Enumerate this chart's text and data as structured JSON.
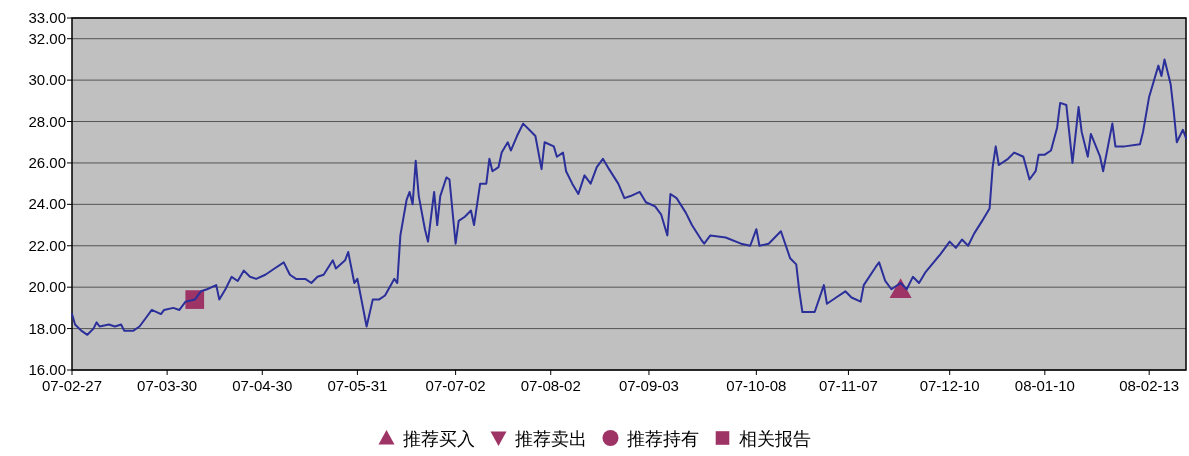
{
  "chart_data": {
    "type": "line",
    "grid": "y",
    "legend": "bottom",
    "xlim": [
      "2007-02-27",
      "2008-02-25"
    ],
    "xticks": [
      {
        "value": "2007-02-27",
        "label": "07-02-27"
      },
      {
        "value": "2007-03-30",
        "label": "07-03-30"
      },
      {
        "value": "2007-04-30",
        "label": "07-04-30"
      },
      {
        "value": "2007-05-31",
        "label": "07-05-31"
      },
      {
        "value": "2007-07-02",
        "label": "07-07-02"
      },
      {
        "value": "2007-08-02",
        "label": "07-08-02"
      },
      {
        "value": "2007-09-03",
        "label": "07-09-03"
      },
      {
        "value": "2007-10-08",
        "label": "07-10-08"
      },
      {
        "value": "2007-11-07",
        "label": "07-11-07"
      },
      {
        "value": "2007-12-10",
        "label": "07-12-10"
      },
      {
        "value": "2008-01-10",
        "label": "08-01-10"
      },
      {
        "value": "2008-02-13",
        "label": "08-02-13"
      }
    ],
    "ylim": [
      16,
      33
    ],
    "yticks": [
      {
        "value": 16,
        "label": "16.00"
      },
      {
        "value": 18,
        "label": "18.00"
      },
      {
        "value": 20,
        "label": "20.00"
      },
      {
        "value": 22,
        "label": "22.00"
      },
      {
        "value": 24,
        "label": "24.00"
      },
      {
        "value": 26,
        "label": "26.00"
      },
      {
        "value": 28,
        "label": "28.00"
      },
      {
        "value": 30,
        "label": "30.00"
      },
      {
        "value": 32,
        "label": "32.00"
      },
      {
        "value": 33,
        "label": "33.00"
      }
    ],
    "x": [
      "2007-02-27",
      "2007-02-28",
      "2007-03-02",
      "2007-03-04",
      "2007-03-06",
      "2007-03-07",
      "2007-03-08",
      "2007-03-11",
      "2007-03-13",
      "2007-03-15",
      "2007-03-16",
      "2007-03-19",
      "2007-03-21",
      "2007-03-23",
      "2007-03-25",
      "2007-03-28",
      "2007-03-29",
      "2007-04-01",
      "2007-04-03",
      "2007-04-05",
      "2007-04-08",
      "2007-04-10",
      "2007-04-12",
      "2007-04-15",
      "2007-04-16",
      "2007-04-18",
      "2007-04-20",
      "2007-04-22",
      "2007-04-24",
      "2007-04-26",
      "2007-04-28",
      "2007-05-01",
      "2007-05-04",
      "2007-05-07",
      "2007-05-09",
      "2007-05-11",
      "2007-05-14",
      "2007-05-16",
      "2007-05-18",
      "2007-05-20",
      "2007-05-23",
      "2007-05-24",
      "2007-05-27",
      "2007-05-28",
      "2007-05-30",
      "2007-05-31",
      "2007-06-03",
      "2007-06-05",
      "2007-06-07",
      "2007-06-09",
      "2007-06-12",
      "2007-06-13",
      "2007-06-14",
      "2007-06-16",
      "2007-06-17",
      "2007-06-18",
      "2007-06-19",
      "2007-06-20",
      "2007-06-22",
      "2007-06-23",
      "2007-06-25",
      "2007-06-26",
      "2007-06-27",
      "2007-06-29",
      "2007-06-30",
      "2007-07-02",
      "2007-07-03",
      "2007-07-05",
      "2007-07-07",
      "2007-07-08",
      "2007-07-10",
      "2007-07-12",
      "2007-07-13",
      "2007-07-14",
      "2007-07-16",
      "2007-07-17",
      "2007-07-19",
      "2007-07-20",
      "2007-07-22",
      "2007-07-24",
      "2007-07-26",
      "2007-07-28",
      "2007-07-30",
      "2007-07-31",
      "2007-08-03",
      "2007-08-04",
      "2007-08-06",
      "2007-08-07",
      "2007-08-09",
      "2007-08-11",
      "2007-08-13",
      "2007-08-15",
      "2007-08-17",
      "2007-08-19",
      "2007-08-21",
      "2007-08-24",
      "2007-08-26",
      "2007-08-28",
      "2007-08-31",
      "2007-09-02",
      "2007-09-05",
      "2007-09-07",
      "2007-09-09",
      "2007-09-10",
      "2007-09-12",
      "2007-09-15",
      "2007-09-17",
      "2007-09-20",
      "2007-09-21",
      "2007-09-23",
      "2007-09-28",
      "2007-10-03",
      "2007-10-06",
      "2007-10-08",
      "2007-10-09",
      "2007-10-12",
      "2007-10-16",
      "2007-10-19",
      "2007-10-21",
      "2007-10-22",
      "2007-10-23",
      "2007-10-27",
      "2007-10-30",
      "2007-10-31",
      "2007-11-03",
      "2007-11-06",
      "2007-11-08",
      "2007-11-11",
      "2007-11-12",
      "2007-11-16",
      "2007-11-17",
      "2007-11-19",
      "2007-11-21",
      "2007-11-24",
      "2007-11-26",
      "2007-11-28",
      "2007-11-30",
      "2007-12-02",
      "2007-12-07",
      "2007-12-10",
      "2007-12-12",
      "2007-12-14",
      "2007-12-16",
      "2007-12-18",
      "2007-12-21",
      "2007-12-23",
      "2007-12-24",
      "2007-12-25",
      "2007-12-26",
      "2007-12-29",
      "2007-12-31",
      "2008-01-03",
      "2008-01-05",
      "2008-01-07",
      "2008-01-08",
      "2008-01-10",
      "2008-01-12",
      "2008-01-14",
      "2008-01-15",
      "2008-01-17",
      "2008-01-19",
      "2008-01-21",
      "2008-01-22",
      "2008-01-24",
      "2008-01-25",
      "2008-01-28",
      "2008-01-29",
      "2008-02-01",
      "2008-02-02",
      "2008-02-05",
      "2008-02-10",
      "2008-02-11",
      "2008-02-13",
      "2008-02-15",
      "2008-02-16",
      "2008-02-17",
      "2008-02-18",
      "2008-02-20",
      "2008-02-21",
      "2008-02-22",
      "2008-02-24",
      "2008-02-25"
    ],
    "series": [
      {
        "type": "line",
        "color": "#2b2f9a",
        "values": [
          18.7,
          18.2,
          17.9,
          17.7,
          18.0,
          18.3,
          18.1,
          18.2,
          18.1,
          18.2,
          17.9,
          17.9,
          18.1,
          18.5,
          18.9,
          18.7,
          18.9,
          19.0,
          18.9,
          19.3,
          19.4,
          19.8,
          19.9,
          20.1,
          19.4,
          19.9,
          20.5,
          20.3,
          20.8,
          20.5,
          20.4,
          20.6,
          20.9,
          21.2,
          20.6,
          20.4,
          20.4,
          20.2,
          20.5,
          20.6,
          21.3,
          20.9,
          21.3,
          21.7,
          20.2,
          20.4,
          18.1,
          19.4,
          19.4,
          19.6,
          20.4,
          20.2,
          22.5,
          24.2,
          24.6,
          24.0,
          26.1,
          24.4,
          22.8,
          22.2,
          24.6,
          23.0,
          24.4,
          25.3,
          25.2,
          22.1,
          23.2,
          23.4,
          23.7,
          23.0,
          25.0,
          25.0,
          26.2,
          25.6,
          25.8,
          26.5,
          27.0,
          26.6,
          27.3,
          27.9,
          27.6,
          27.3,
          25.7,
          27.0,
          26.8,
          26.3,
          26.5,
          25.6,
          25.0,
          24.5,
          25.4,
          25.0,
          25.8,
          26.2,
          25.7,
          25.0,
          24.3,
          24.4,
          24.6,
          24.1,
          23.9,
          23.5,
          22.5,
          24.5,
          24.3,
          23.6,
          23.0,
          22.3,
          22.1,
          22.5,
          22.4,
          22.1,
          22.0,
          22.8,
          22.0,
          22.1,
          22.7,
          21.4,
          21.1,
          19.8,
          18.8,
          18.8,
          20.1,
          19.2,
          19.5,
          19.8,
          19.5,
          19.3,
          20.1,
          21.0,
          21.2,
          20.3,
          19.9,
          20.2,
          19.9,
          20.5,
          20.2,
          20.7,
          21.6,
          22.2,
          21.9,
          22.3,
          22.0,
          22.6,
          23.3,
          23.8,
          25.8,
          26.8,
          25.9,
          26.2,
          26.5,
          26.3,
          25.2,
          25.6,
          26.4,
          26.4,
          26.6,
          27.7,
          28.9,
          28.8,
          26.0,
          28.7,
          27.5,
          26.3,
          27.4,
          26.3,
          25.6,
          27.9,
          26.8,
          26.8,
          26.9,
          27.5,
          29.2,
          30.2,
          30.7,
          30.2,
          31.0,
          29.8,
          28.5,
          27.0,
          27.6,
          27.2
        ]
      },
      {
        "name": "推荐买入",
        "type": "scatter",
        "marker": "triangle",
        "color": "#9e3366",
        "x": [
          "2007-11-24"
        ],
        "values": [
          19.9
        ]
      },
      {
        "name": "推荐卖出",
        "type": "scatter",
        "marker": "triangle-down",
        "color": "#9e3366",
        "values": [
          null,
          null,
          null,
          null,
          null,
          null,
          null,
          null,
          null,
          null,
          null,
          null,
          null,
          null,
          null,
          null,
          null,
          null,
          null,
          null,
          null,
          null,
          null,
          null,
          null,
          null,
          null,
          null,
          null,
          null,
          null,
          null,
          null,
          null,
          null,
          null,
          null,
          null,
          null,
          null,
          null,
          null,
          null,
          null,
          null,
          null,
          null,
          null,
          null,
          null,
          null,
          null,
          null,
          null,
          null,
          null,
          null,
          null,
          null,
          null,
          null,
          null,
          null,
          null,
          null,
          null,
          null,
          null,
          null,
          null,
          null,
          null,
          null,
          null,
          null,
          null,
          null,
          null,
          null,
          null,
          null,
          null,
          null,
          null,
          null,
          null,
          null,
          null,
          null,
          null,
          null,
          null,
          null,
          null,
          null,
          null,
          null,
          null,
          null,
          null,
          null,
          null,
          null,
          null,
          null,
          null,
          null,
          null,
          null,
          null,
          null,
          null,
          null,
          null,
          null,
          null,
          null,
          null,
          null,
          null,
          null,
          null,
          null,
          null,
          null,
          null,
          null,
          null,
          null,
          null,
          null,
          null,
          null,
          null,
          null,
          null,
          null,
          null,
          null,
          null,
          null,
          null,
          null,
          null,
          null,
          null,
          null,
          null,
          null,
          null,
          null,
          null,
          null,
          null,
          null,
          null,
          null,
          null,
          null,
          null,
          null,
          null,
          null,
          null,
          null,
          null,
          null,
          null,
          null,
          null,
          null,
          null,
          null,
          null,
          null,
          null,
          null,
          null,
          null,
          null,
          null,
          null
        ]
      },
      {
        "name": "推荐持有",
        "type": "scatter",
        "marker": "circle",
        "color": "#9e3366",
        "values": [
          null,
          null,
          null,
          null,
          null,
          null,
          null,
          null,
          null,
          null,
          null,
          null,
          null,
          null,
          null,
          null,
          null,
          null,
          null,
          null,
          null,
          null,
          null,
          null,
          null,
          null,
          null,
          null,
          null,
          null,
          null,
          null,
          null,
          null,
          null,
          null,
          null,
          null,
          null,
          null,
          null,
          null,
          null,
          null,
          null,
          null,
          null,
          null,
          null,
          null,
          null,
          null,
          null,
          null,
          null,
          null,
          null,
          null,
          null,
          null,
          null,
          null,
          null,
          null,
          null,
          null,
          null,
          null,
          null,
          null,
          null,
          null,
          null,
          null,
          null,
          null,
          null,
          null,
          null,
          null,
          null,
          null,
          null,
          null,
          null,
          null,
          null,
          null,
          null,
          null,
          null,
          null,
          null,
          null,
          null,
          null,
          null,
          null,
          null,
          null,
          null,
          null,
          null,
          null,
          null,
          null,
          null,
          null,
          null,
          null,
          null,
          null,
          null,
          null,
          null,
          null,
          null,
          null,
          null,
          null,
          null,
          null,
          null,
          null,
          null,
          null,
          null,
          null,
          null,
          null,
          null,
          null,
          null,
          null,
          null,
          null,
          null,
          null,
          null,
          null,
          null,
          null,
          null,
          null,
          null,
          null,
          null,
          null,
          null,
          null,
          null,
          null,
          null,
          null,
          null,
          null,
          null,
          null,
          null,
          null,
          null,
          null,
          null,
          null,
          null,
          null,
          null,
          null,
          null,
          null,
          null,
          null,
          null,
          null,
          null,
          null,
          null,
          null,
          null,
          null,
          null,
          null
        ]
      },
      {
        "name": "相关报告",
        "type": "scatter",
        "marker": "square",
        "color": "#9e3366",
        "x": [
          "2007-04-08"
        ],
        "values": [
          19.4
        ]
      }
    ]
  }
}
